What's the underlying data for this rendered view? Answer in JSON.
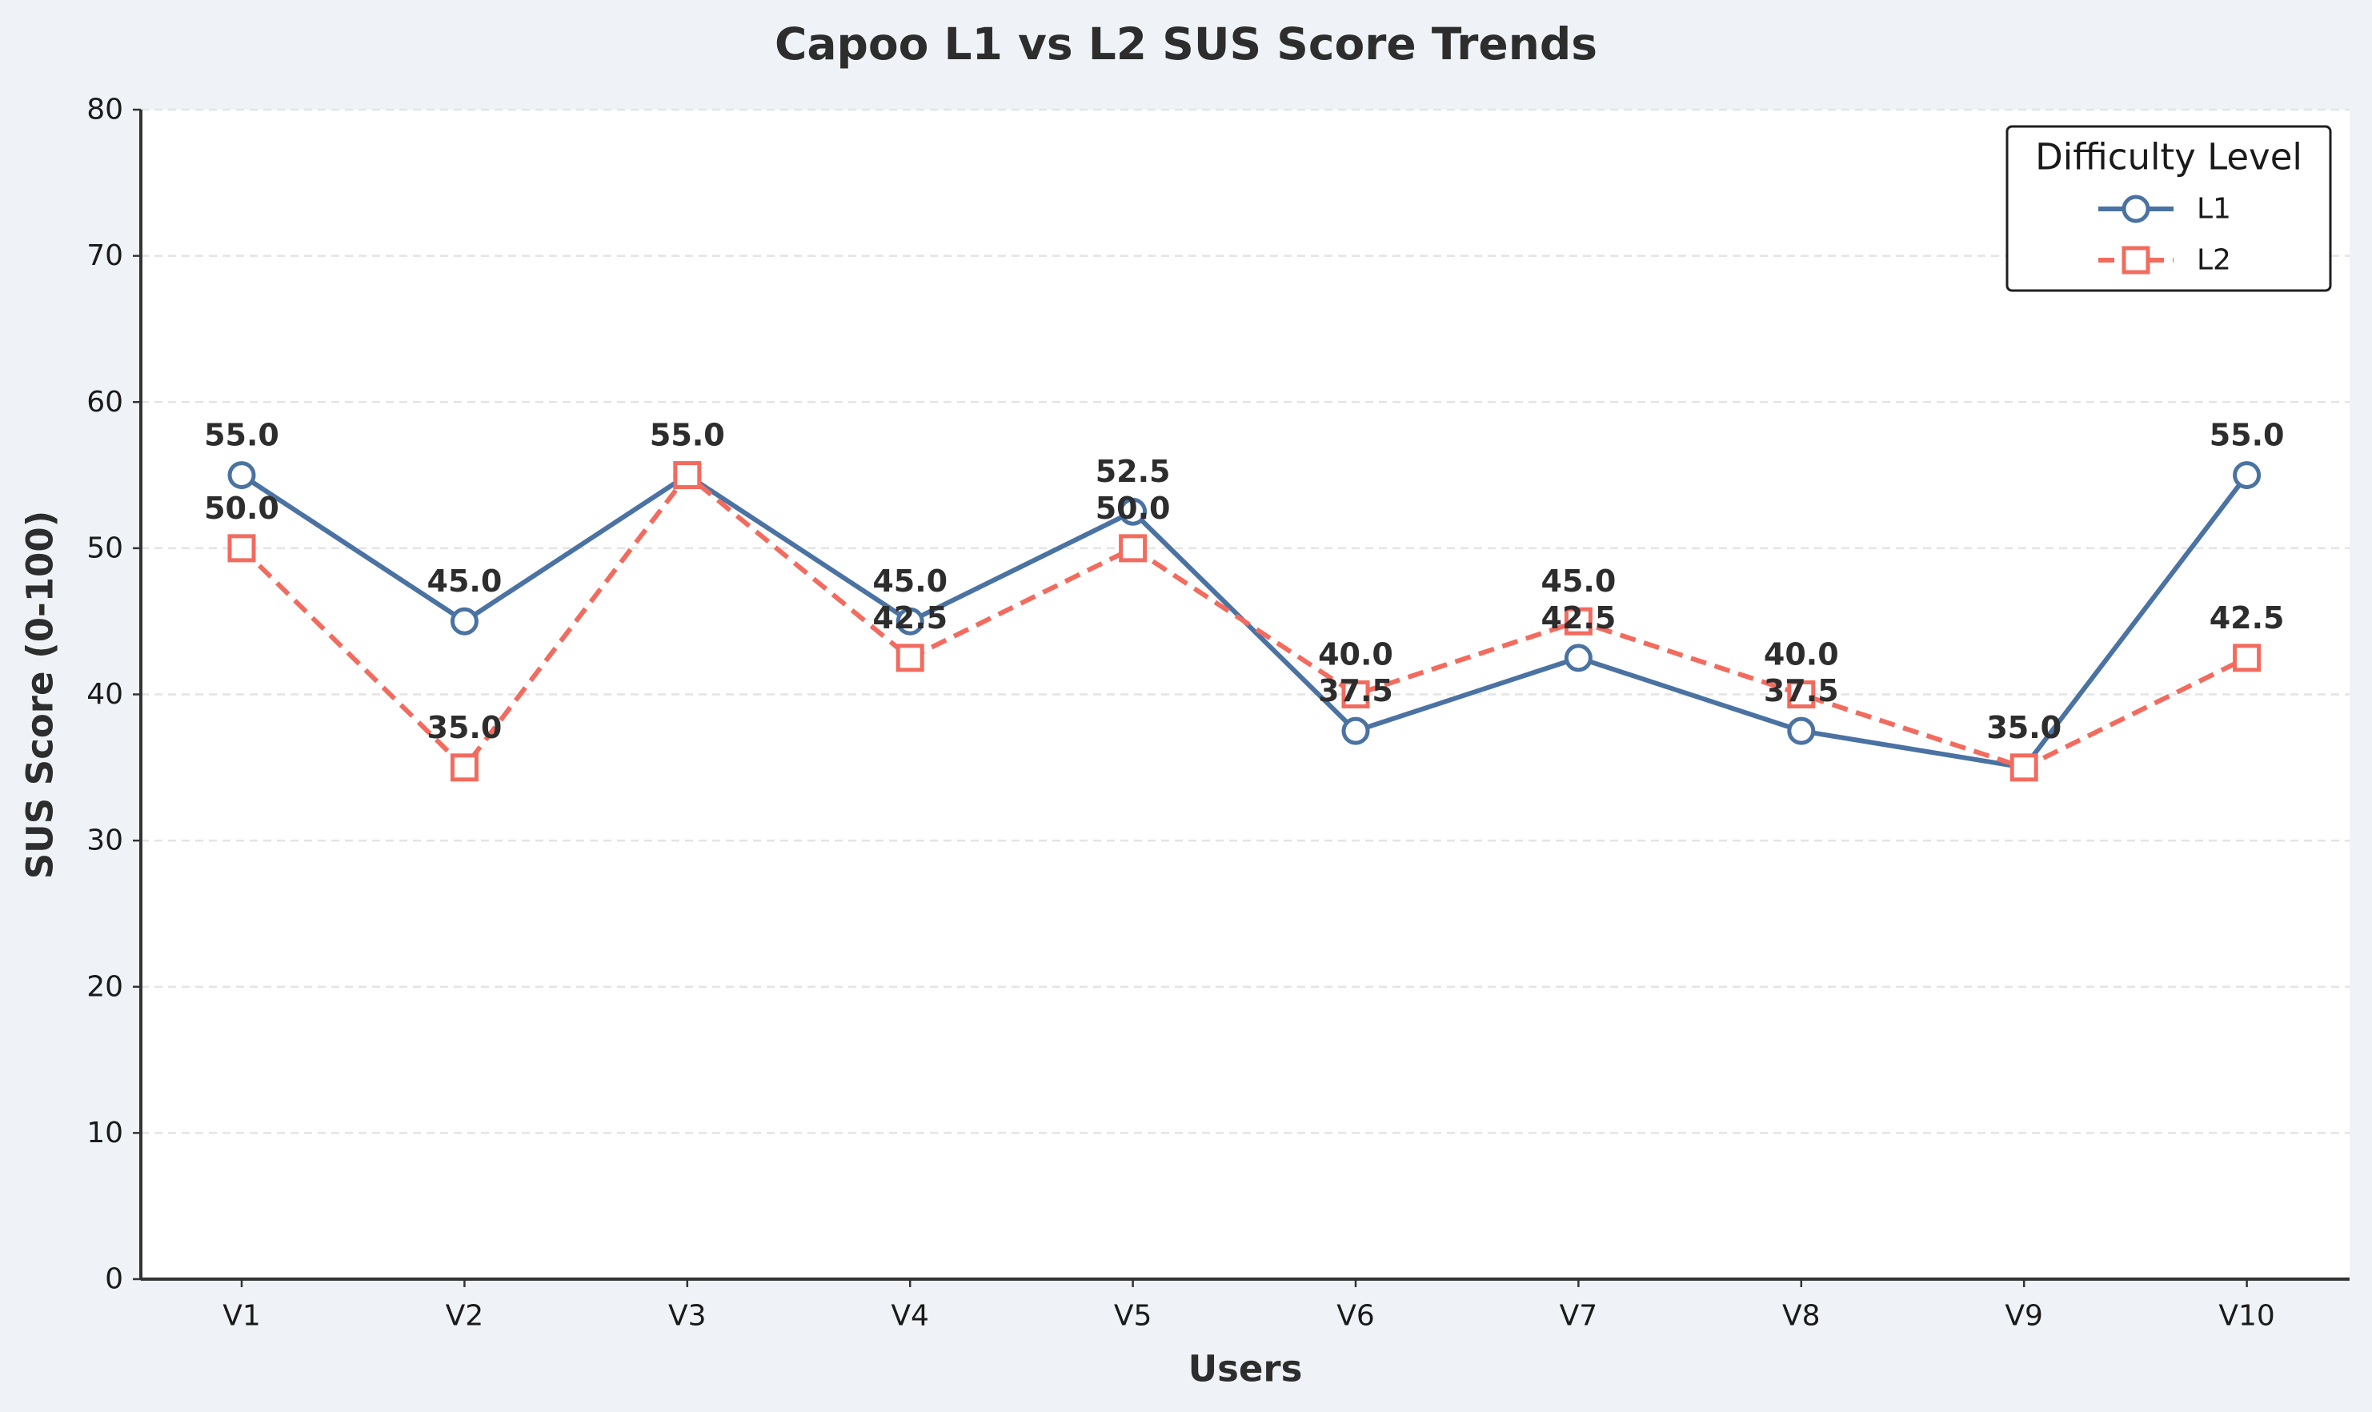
{
  "chart_data": {
    "type": "line",
    "title": "Capoo L1 vs L2 SUS Score Trends",
    "xlabel": "Users",
    "ylabel": "SUS Score (0-100)",
    "categories": [
      "V1",
      "V2",
      "V3",
      "V4",
      "V5",
      "V6",
      "V7",
      "V8",
      "V9",
      "V10"
    ],
    "ylim": [
      0,
      80
    ],
    "yticks": [
      0,
      10,
      20,
      30,
      40,
      50,
      60,
      70,
      80
    ],
    "grid": "horizontal dashed",
    "legend": {
      "title": "Difficulty Level",
      "placement": "top-right"
    },
    "series": [
      {
        "name": "L1",
        "values": [
          55.0,
          45.0,
          55.0,
          45.0,
          52.5,
          37.5,
          42.5,
          37.5,
          35.0,
          55.0
        ],
        "color": "#4a72a2",
        "marker": "circle",
        "linestyle": "solid"
      },
      {
        "name": "L2",
        "values": [
          50.0,
          35.0,
          55.0,
          42.5,
          50.0,
          40.0,
          45.0,
          40.0,
          35.0,
          42.5
        ],
        "color": "#f26b5e",
        "marker": "square",
        "linestyle": "dashed"
      }
    ]
  }
}
